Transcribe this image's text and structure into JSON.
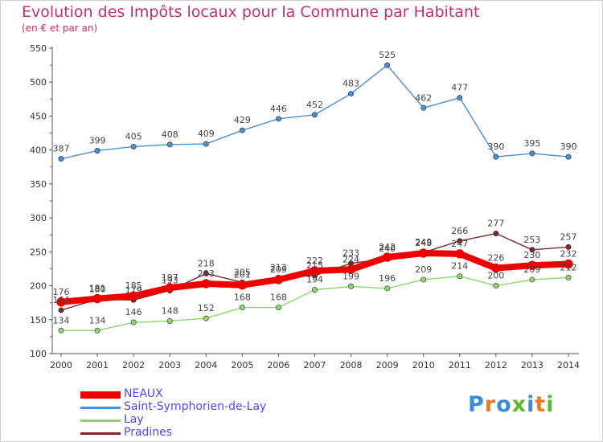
{
  "header": {
    "title": "Evolution des Impôts locaux pour la Commune par Habitant",
    "subtitle": "(en € et par an)"
  },
  "logo": {
    "text": "Proxiti",
    "colors": [
      "#3a8ad6",
      "#f07820",
      "#3a8ad6",
      "#5cb82c",
      "#3a8ad6",
      "#f07820",
      "#5cb82c"
    ]
  },
  "chart_data": {
    "type": "line",
    "title": "Evolution des Impôts locaux pour la Commune par Habitant",
    "subtitle": "(en € et par an)",
    "x": [
      "2000",
      "2001",
      "2002",
      "2003",
      "2004",
      "2005",
      "2006",
      "2007",
      "2008",
      "2009",
      "2010",
      "2011",
      "2012",
      "2013",
      "2014"
    ],
    "ylim": [
      100,
      550
    ],
    "yticks": [
      100,
      150,
      200,
      250,
      300,
      350,
      400,
      450,
      500,
      550
    ],
    "grid": false,
    "legend": "bottom-left",
    "series": [
      {
        "name": "NEAUX",
        "color": "#ee0000",
        "values": [
          176,
          181,
          185,
          197,
          203,
          201,
          209,
          222,
          224,
          242,
          248,
          247,
          226,
          230,
          232
        ],
        "labels": [
          "176",
          "181",
          "185",
          "197",
          "203",
          "201",
          "209",
          "222",
          "224",
          "242",
          "248",
          "247",
          "226",
          "230",
          "232"
        ]
      },
      {
        "name": "Saint-Symphorien-de-Lay",
        "color": "#4a8fd0",
        "values": [
          387,
          399,
          405,
          408,
          409,
          429,
          446,
          452,
          483,
          525,
          462,
          477,
          390,
          395,
          390
        ],
        "labels": [
          "387",
          "399",
          "405",
          "408",
          "409",
          "429",
          "446",
          "452",
          "483",
          "525",
          "462",
          "477",
          "390",
          "395",
          "390"
        ]
      },
      {
        "name": "Lay",
        "color": "#8fd46a",
        "values": [
          134,
          134,
          146,
          148,
          152,
          168,
          168,
          194,
          199,
          196,
          209,
          214,
          200,
          209,
          212
        ],
        "labels": [
          "134",
          "134",
          "146",
          "148",
          "152",
          "168",
          "168",
          "194",
          "199",
          "196",
          "209",
          "214",
          "200",
          "209",
          "212"
        ]
      },
      {
        "name": "Pradines",
        "color": "#7a2a2a",
        "values": [
          164,
          180,
          179,
          193,
          218,
          205,
          212,
          215,
          233,
          240,
          249,
          266,
          277,
          253,
          257
        ],
        "labels": [
          "164",
          "180",
          "179",
          "193",
          "218",
          "205",
          "212",
          "215",
          "233",
          "240",
          "249",
          "266",
          "277",
          "253",
          "257"
        ]
      }
    ]
  }
}
